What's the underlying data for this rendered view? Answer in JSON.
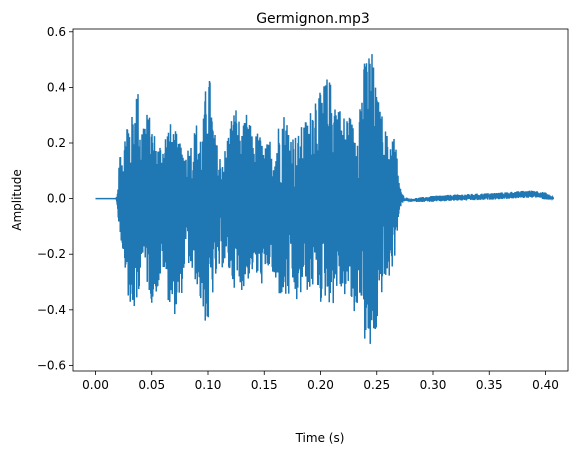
{
  "chart_data": {
    "type": "line",
    "title": "Germignon.mp3",
    "xlabel": "Time (s)",
    "ylabel": "Amplitude",
    "xlim": [
      -0.02,
      0.42
    ],
    "ylim": [
      -0.62,
      0.61
    ],
    "grid": false,
    "legend": "none",
    "xticks": [
      {
        "value": 0.0,
        "label": "0.00"
      },
      {
        "value": 0.05,
        "label": "0.05"
      },
      {
        "value": 0.1,
        "label": "0.10"
      },
      {
        "value": 0.15,
        "label": "0.15"
      },
      {
        "value": 0.2,
        "label": "0.20"
      },
      {
        "value": 0.25,
        "label": "0.25"
      },
      {
        "value": 0.3,
        "label": "0.30"
      },
      {
        "value": 0.35,
        "label": "0.35"
      },
      {
        "value": 0.4,
        "label": "0.40"
      }
    ],
    "yticks": [
      {
        "value": -0.6,
        "label": "−0.6"
      },
      {
        "value": -0.4,
        "label": "−0.4"
      },
      {
        "value": -0.2,
        "label": "−0.2"
      },
      {
        "value": 0.0,
        "label": "0.0"
      },
      {
        "value": 0.2,
        "label": "0.2"
      },
      {
        "value": 0.4,
        "label": "0.4"
      },
      {
        "value": 0.6,
        "label": "0.6"
      }
    ],
    "series": [
      {
        "color": "#1f77b4",
        "duration": 0.407,
        "envelope": {
          "t": [
            0.0,
            0.018,
            0.019,
            0.02,
            0.022,
            0.025,
            0.028,
            0.03,
            0.033,
            0.037,
            0.04,
            0.045,
            0.05,
            0.055,
            0.06,
            0.065,
            0.07,
            0.075,
            0.08,
            0.085,
            0.09,
            0.095,
            0.1,
            0.105,
            0.11,
            0.115,
            0.12,
            0.125,
            0.13,
            0.135,
            0.14,
            0.145,
            0.15,
            0.155,
            0.16,
            0.165,
            0.17,
            0.175,
            0.18,
            0.185,
            0.19,
            0.195,
            0.2,
            0.205,
            0.21,
            0.215,
            0.22,
            0.225,
            0.23,
            0.235,
            0.24,
            0.245,
            0.25,
            0.255,
            0.26,
            0.265,
            0.268,
            0.27,
            0.272,
            0.275,
            0.28,
            0.3,
            0.32,
            0.34,
            0.36,
            0.38,
            0.39,
            0.395,
            0.4,
            0.407
          ],
          "max": [
            0.0,
            0.0,
            0.01,
            0.04,
            0.2,
            0.18,
            0.32,
            0.3,
            0.3,
            0.44,
            0.26,
            0.32,
            0.28,
            0.2,
            0.22,
            0.28,
            0.26,
            0.2,
            0.18,
            0.21,
            0.28,
            0.24,
            0.52,
            0.26,
            0.16,
            0.18,
            0.29,
            0.34,
            0.24,
            0.32,
            0.22,
            0.25,
            0.18,
            0.22,
            0.21,
            0.33,
            0.3,
            0.24,
            0.23,
            0.28,
            0.3,
            0.4,
            0.38,
            0.44,
            0.42,
            0.36,
            0.3,
            0.32,
            0.26,
            0.38,
            0.52,
            0.56,
            0.38,
            0.3,
            0.22,
            0.24,
            0.16,
            0.06,
            0.02,
            0.005,
            0.0,
            0.01,
            0.015,
            0.018,
            0.022,
            0.028,
            0.03,
            0.026,
            0.022,
            0.006
          ],
          "min": [
            0.0,
            0.0,
            -0.02,
            -0.08,
            -0.14,
            -0.22,
            -0.29,
            -0.46,
            -0.4,
            -0.44,
            -0.22,
            -0.3,
            -0.38,
            -0.33,
            -0.26,
            -0.38,
            -0.42,
            -0.4,
            -0.2,
            -0.28,
            -0.31,
            -0.42,
            -0.48,
            -0.32,
            -0.26,
            -0.24,
            -0.29,
            -0.34,
            -0.33,
            -0.3,
            -0.26,
            -0.31,
            -0.31,
            -0.24,
            -0.34,
            -0.36,
            -0.38,
            -0.33,
            -0.4,
            -0.3,
            -0.36,
            -0.3,
            -0.38,
            -0.36,
            -0.4,
            -0.32,
            -0.36,
            -0.34,
            -0.44,
            -0.34,
            -0.56,
            -0.57,
            -0.48,
            -0.32,
            -0.3,
            -0.24,
            -0.12,
            -0.04,
            -0.02,
            -0.008,
            -0.012,
            -0.012,
            -0.008,
            -0.006,
            -0.002,
            0.002,
            0.004,
            0.0,
            -0.004,
            -0.004
          ]
        }
      }
    ]
  }
}
